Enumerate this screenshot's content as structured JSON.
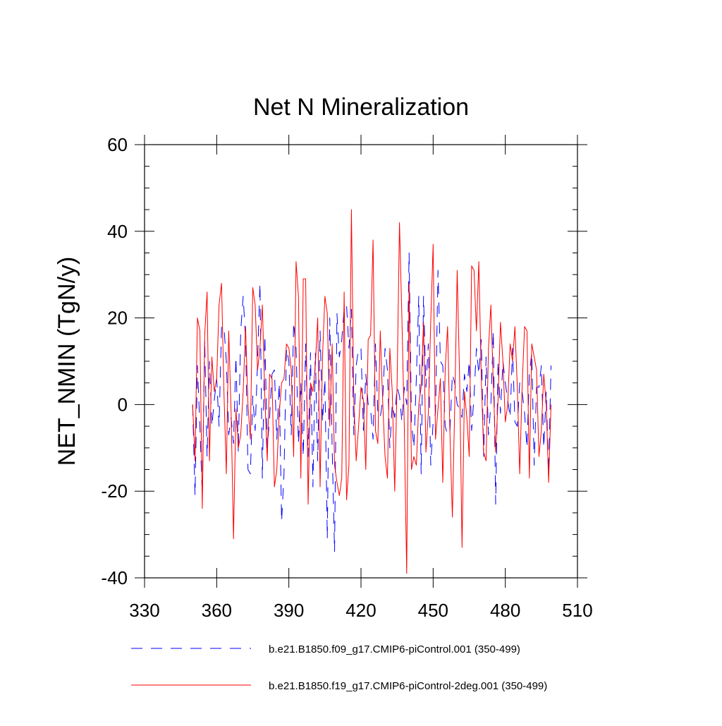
{
  "chart_data": {
    "type": "line",
    "title": "Net N Mineralization",
    "xlabel": "",
    "ylabel": "NET_NMIN  (TgN/y)",
    "xlim": [
      330,
      510
    ],
    "ylim": [
      -40,
      60
    ],
    "xticks": [
      330,
      360,
      390,
      420,
      450,
      480,
      510
    ],
    "yticks": [
      -40,
      -20,
      0,
      20,
      40,
      60
    ],
    "xtick_labels": [
      "330",
      "360",
      "390",
      "420",
      "450",
      "480",
      "510"
    ],
    "ytick_labels": [
      "-40",
      "-20",
      "0",
      "20",
      "40",
      "60"
    ],
    "grid": false,
    "legend_position": "bottom",
    "x_start": 350,
    "series": [
      {
        "name": "b.e21.B1850.f09_g17.CMIP6-piControl.001 (350-499)",
        "color": "#0000ff",
        "style": "dashed",
        "values": [
          0,
          -21,
          9,
          -5,
          -21,
          15,
          -12,
          10,
          -5,
          1,
          6,
          -5,
          18,
          18,
          10,
          -7,
          -3,
          -9,
          11,
          -11,
          17,
          25,
          15,
          -15,
          -16,
          2,
          -6,
          10,
          28,
          -17,
          16,
          -10,
          -3,
          7,
          8,
          -8,
          5,
          -27,
          -16,
          13,
          10,
          -7,
          19,
          13,
          -9,
          5,
          -12,
          14,
          -12,
          12,
          -19,
          12,
          -13,
          17,
          -4,
          6,
          -31,
          20,
          -10,
          -34,
          21,
          11,
          15,
          22,
          23,
          13,
          22,
          -7,
          9,
          13,
          13,
          -6,
          7,
          0,
          -1,
          -8,
          14,
          -2,
          -3,
          1,
          13,
          8,
          -10,
          0,
          -3,
          4,
          2,
          -4,
          4,
          0,
          35,
          -4,
          -10,
          6,
          25,
          -16,
          25,
          4,
          14,
          -14,
          -4,
          -2,
          31,
          10,
          9,
          -5,
          -7,
          -6,
          7,
          5,
          0,
          -1,
          -3,
          7,
          3,
          10,
          -6,
          2,
          13,
          7,
          15,
          -12,
          11,
          -7,
          0,
          17,
          -23,
          10,
          -2,
          10,
          5,
          1,
          -3,
          13,
          -4,
          -5,
          5,
          3,
          -2,
          -10,
          7,
          12,
          -14,
          4,
          4,
          9,
          -10,
          3,
          -16,
          9
        ],
        "values_note": "per-year values approximate; 150 years 350-499"
      },
      {
        "name": "b.e21.B1850.f19_g17.CMIP6-piControl-2deg.001 (350-499)",
        "color": "#ff0000",
        "style": "solid",
        "values": [
          0,
          -13,
          20,
          17,
          -24,
          16,
          26,
          -13,
          11,
          3,
          6,
          23,
          28,
          3,
          -16,
          17,
          -2,
          -31,
          -1,
          -10,
          -7,
          3,
          18,
          0,
          -8,
          27,
          23,
          8,
          13,
          23,
          2,
          -13,
          7,
          6,
          -19,
          -15,
          -2,
          5,
          6,
          14,
          13,
          8,
          -12,
          33,
          25,
          -17,
          29,
          29,
          -23,
          5,
          3,
          9,
          20,
          -19,
          11,
          25,
          21,
          -5,
          14,
          -14,
          -18,
          -21,
          -17,
          26,
          -22,
          -14,
          45,
          1,
          -13,
          -5,
          4,
          1,
          -15,
          15,
          16,
          38,
          -6,
          -9,
          17,
          1,
          -12,
          -17,
          13,
          3,
          -20,
          5,
          42,
          20,
          -5,
          -39,
          28,
          -15,
          -12,
          -14,
          0,
          4,
          19,
          -11,
          -2,
          19,
          37,
          -8,
          -1,
          6,
          -18,
          8,
          18,
          -7,
          -26,
          0,
          31,
          6,
          -33,
          3,
          -3,
          -12,
          32,
          31,
          17,
          33,
          6,
          -11,
          -13,
          13,
          23,
          5,
          -11,
          1,
          19,
          10,
          -4,
          0,
          14,
          10,
          18,
          4,
          -16,
          4,
          18,
          17,
          -17,
          14,
          11,
          8,
          -12,
          -6,
          7,
          0,
          -18,
          0
        ],
        "values_note": "per-year values approximate; 150 years 350-499"
      }
    ]
  }
}
